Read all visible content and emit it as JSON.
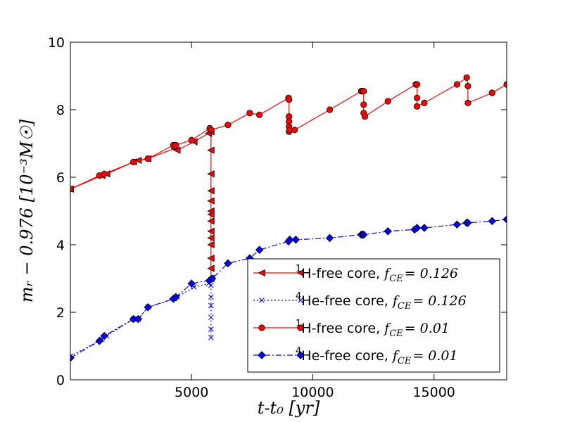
{
  "chart_data": {
    "type": "line",
    "title": "",
    "xlabel": "t-t₀ [yr]",
    "ylabel": "mᵣ − 0.976 [10⁻³M☉]",
    "xlim": [
      0,
      18000
    ],
    "ylim": [
      0,
      10
    ],
    "xticks": [
      5000,
      10000,
      15000
    ],
    "xtick_labels": [
      "5000",
      "10000",
      "15000"
    ],
    "yticks": [
      0,
      2,
      4,
      6,
      8,
      10
    ],
    "ytick_labels": [
      "0",
      "2",
      "4",
      "6",
      "8",
      "10"
    ],
    "grid": false,
    "legend_position": "lower-right",
    "series": [
      {
        "name": "¹H-free core, f_CE = 0.126",
        "legend_sup": "1",
        "legend_text": "H-free core, ",
        "legend_f": "f",
        "legend_sub": "CE",
        "legend_eq": "= 0.126",
        "color": "#ff0000",
        "line": "solid",
        "marker": "triangle-left",
        "x": [
          0,
          1300,
          1500,
          2600,
          2800,
          3200,
          4300,
          4400,
          5100,
          5700,
          5800,
          5800,
          5800,
          5800,
          5800,
          5800,
          5800,
          5800,
          5800,
          5800,
          5800,
          5800,
          5800,
          5800
        ],
        "y": [
          5.65,
          6.05,
          6.1,
          6.45,
          6.5,
          6.55,
          6.85,
          6.8,
          7.05,
          7.3,
          7.35,
          6.8,
          6.1,
          5.6,
          5.3,
          5.0,
          4.9,
          4.7,
          4.4,
          4.2,
          4.0,
          3.6,
          3.3,
          3.0
        ]
      },
      {
        "name": "⁴He-free core, f_CE = 0.126",
        "legend_sup": "4",
        "legend_text": "He-free core, ",
        "legend_f": "f",
        "legend_sub": "CE",
        "legend_eq": "= 0.126",
        "color": "#0000ff",
        "line": "dotted",
        "marker": "x",
        "x": [
          0,
          1300,
          1500,
          2600,
          2800,
          3200,
          4300,
          4400,
          5100,
          5700,
          5800,
          5800,
          5800,
          5800,
          5800,
          5800
        ],
        "y": [
          0.7,
          1.2,
          1.3,
          1.8,
          1.8,
          2.15,
          2.4,
          2.45,
          2.75,
          2.85,
          2.8,
          2.45,
          2.2,
          1.85,
          1.5,
          1.25
        ]
      },
      {
        "name": "¹H-free core, f_CE = 0.01",
        "legend_sup": "1",
        "legend_text": "H-free core, ",
        "legend_f": "f",
        "legend_sub": "CE",
        "legend_eq": "= 0.01",
        "color": "#ff0000",
        "line": "solid",
        "marker": "circle",
        "x": [
          0,
          1200,
          1400,
          2600,
          3200,
          4250,
          4350,
          5000,
          5750,
          5800,
          6500,
          7400,
          7800,
          9000,
          9020,
          9020,
          9020,
          9020,
          9020,
          9050,
          9250,
          10700,
          12000,
          12050,
          12100,
          12100,
          12100,
          12150,
          13100,
          14250,
          14300,
          14300,
          14300,
          14600,
          15950,
          16350,
          16400,
          16400,
          17400,
          18000
        ],
        "y": [
          5.65,
          6.05,
          6.1,
          6.45,
          6.55,
          6.95,
          6.95,
          7.1,
          7.45,
          7.4,
          7.55,
          7.9,
          7.85,
          8.35,
          8.3,
          7.8,
          7.65,
          7.5,
          7.35,
          7.4,
          7.4,
          8.0,
          8.55,
          8.55,
          8.55,
          8.15,
          7.9,
          7.8,
          8.25,
          8.75,
          8.75,
          8.35,
          8.1,
          8.2,
          8.75,
          8.95,
          8.7,
          8.2,
          8.5,
          8.75
        ]
      },
      {
        "name": "⁴He-free core, f_CE = 0.01",
        "legend_sup": "4",
        "legend_text": "He-free core, ",
        "legend_f": "f",
        "legend_sub": "CE",
        "legend_eq": "= 0.01",
        "color": "#0000ff",
        "line": "dashed",
        "marker": "diamond",
        "x": [
          0,
          1200,
          1400,
          2600,
          2800,
          3200,
          4250,
          4350,
          5000,
          5750,
          5850,
          6500,
          7400,
          7800,
          9000,
          9050,
          9300,
          10700,
          12000,
          12050,
          12100,
          13100,
          14200,
          14300,
          14600,
          15950,
          16350,
          16400,
          17400,
          18000
        ],
        "y": [
          0.65,
          1.15,
          1.3,
          1.8,
          1.8,
          2.15,
          2.4,
          2.45,
          2.85,
          2.95,
          3.0,
          3.45,
          3.6,
          3.85,
          4.1,
          4.15,
          4.15,
          4.2,
          4.3,
          4.3,
          4.3,
          4.4,
          4.45,
          4.5,
          4.5,
          4.6,
          4.65,
          4.65,
          4.7,
          4.75
        ]
      }
    ]
  }
}
